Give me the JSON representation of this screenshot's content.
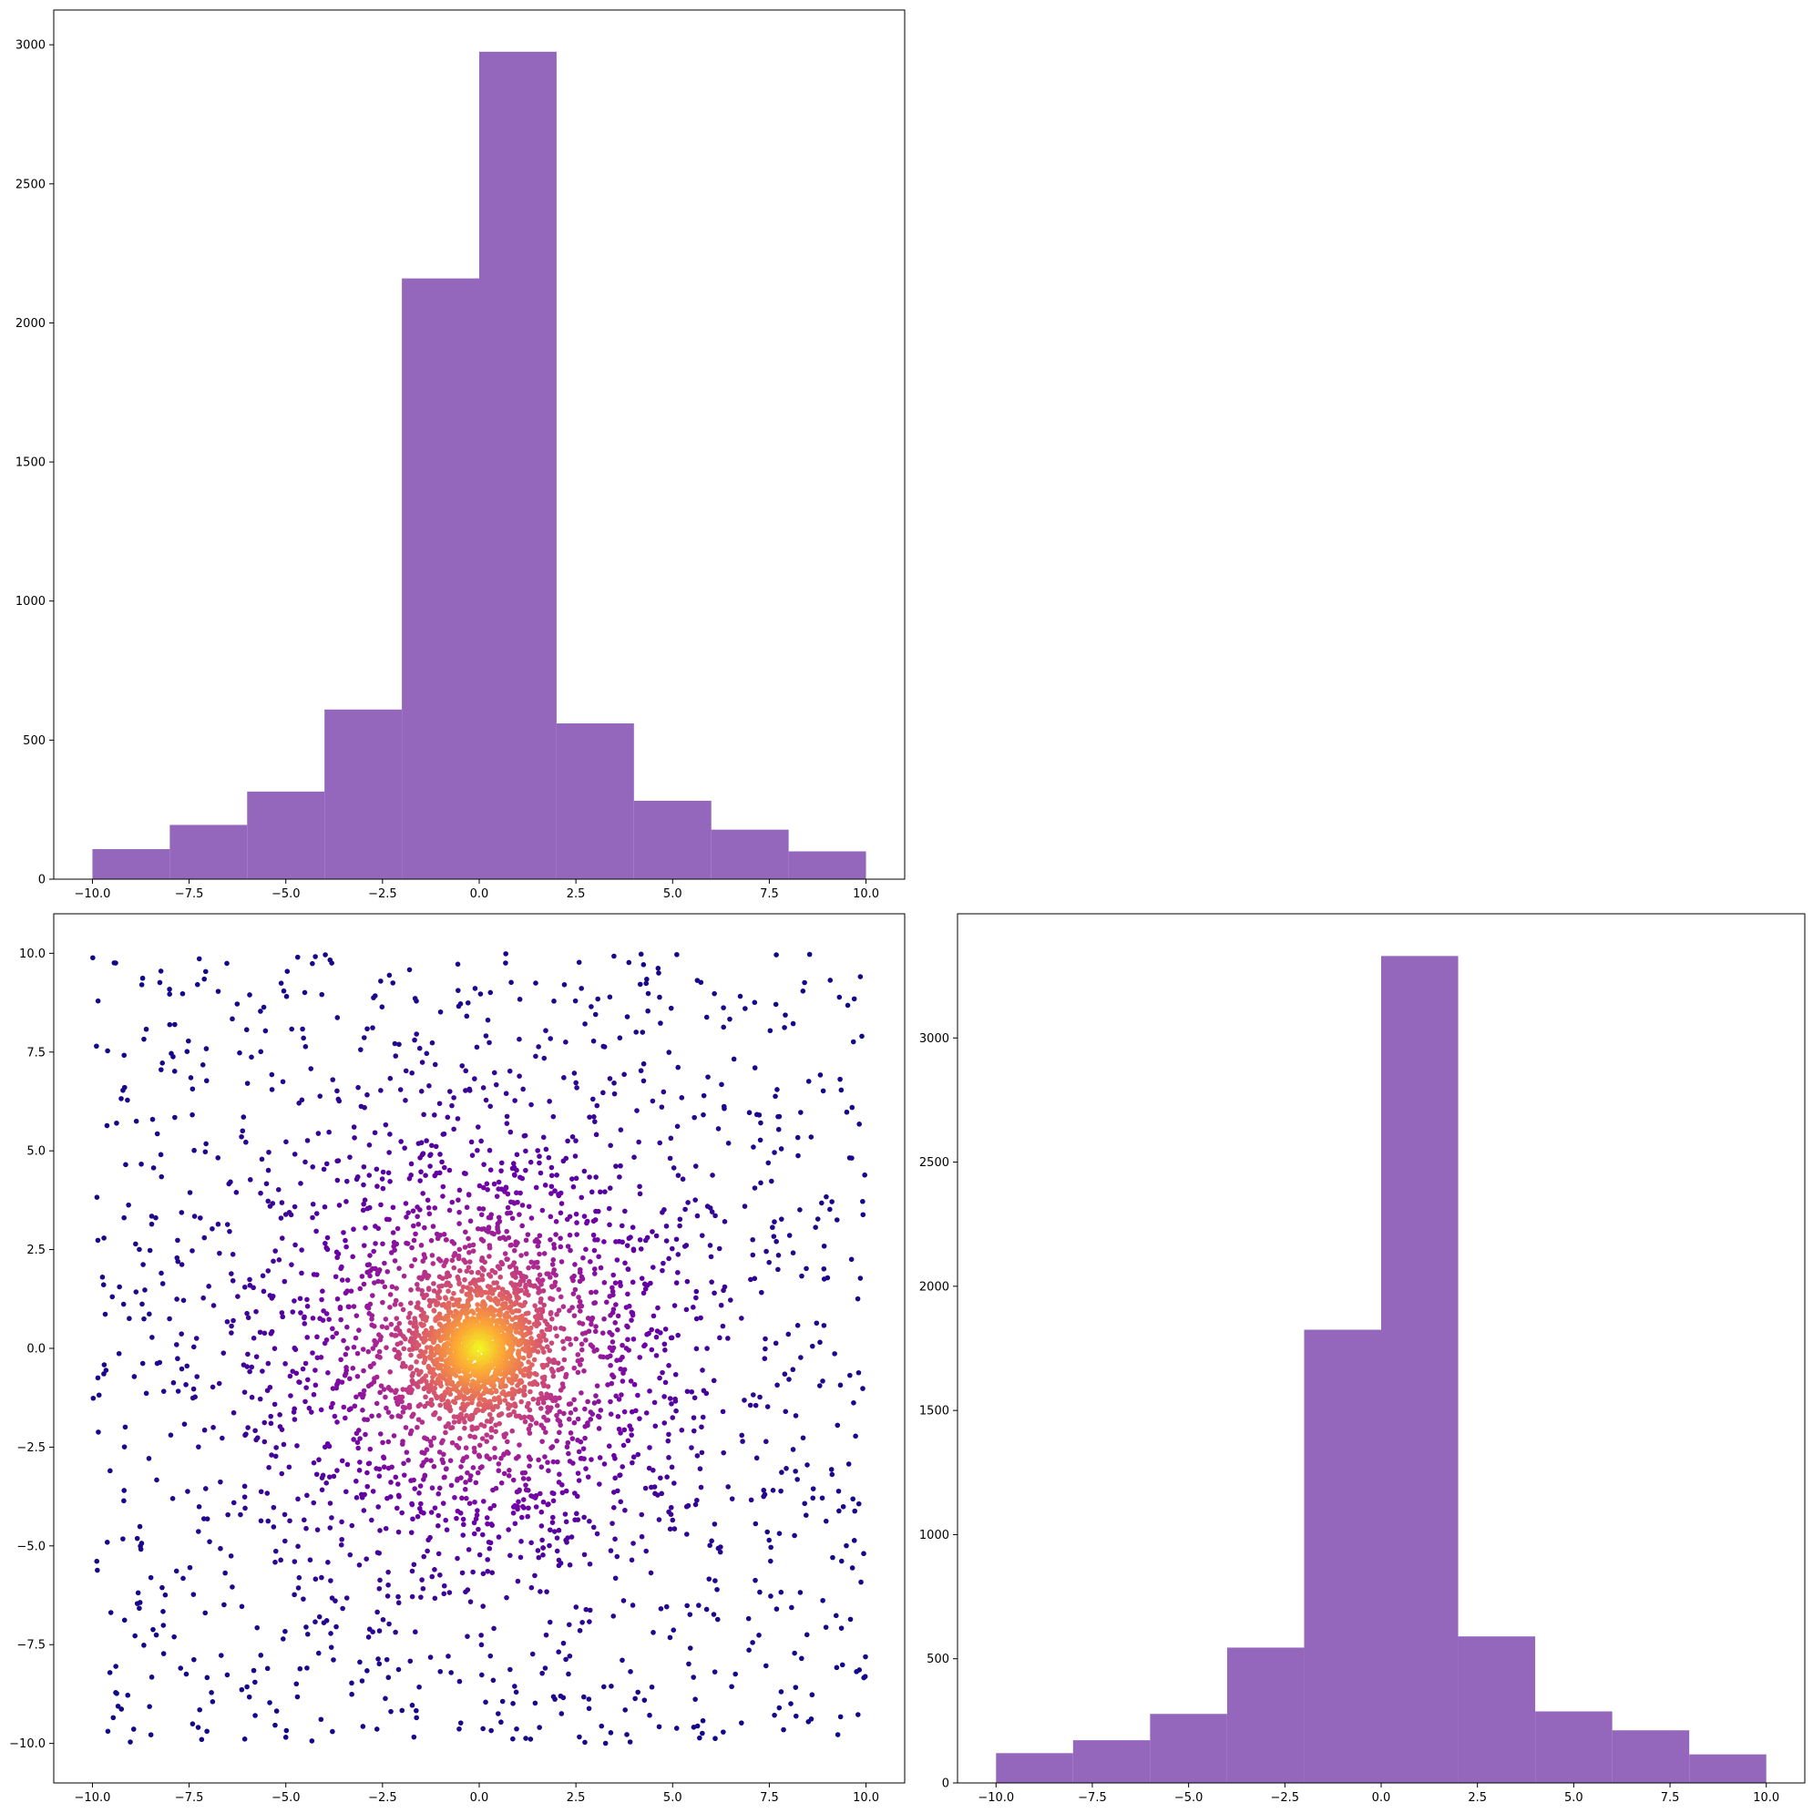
{
  "colors": {
    "bar_fill": "#9467bd",
    "scatter_colormap": [
      "#0d0887",
      "#6a00a8",
      "#b12a90",
      "#e16462",
      "#fca636",
      "#f0f921"
    ],
    "axes_edge": "#000000"
  },
  "chart_data": [
    {
      "id": "top-left-histogram",
      "type": "bar",
      "position": "top-left",
      "bin_edges": [
        -10,
        -8,
        -6,
        -4,
        -2,
        0,
        2,
        4,
        6,
        8,
        10
      ],
      "values": [
        108,
        195,
        315,
        610,
        2160,
        2975,
        560,
        282,
        178,
        100
      ],
      "xlim": [
        -11,
        11
      ],
      "ylim": [
        0,
        3125
      ],
      "xticks": [
        -10,
        -7.5,
        -5,
        -2.5,
        0,
        2.5,
        5,
        7.5,
        10
      ],
      "xtick_labels": [
        "−10.0",
        "−7.5",
        "−5.0",
        "−2.5",
        "0.0",
        "2.5",
        "5.0",
        "7.5",
        "10.0"
      ],
      "yticks": [
        0,
        500,
        1000,
        1500,
        2000,
        2500,
        3000
      ],
      "ytick_labels": [
        "0",
        "500",
        "1000",
        "1500",
        "2000",
        "2500",
        "3000"
      ],
      "grid": false
    },
    {
      "id": "bottom-left-scatter",
      "type": "scatter",
      "position": "bottom-left",
      "point_count": 4000,
      "color_encoding": "local point density (plasma colormap: dark purple sparse to yellow dense)",
      "distribution": "concentrated at (0, 0), spreading out to uniform sparse points across [-10, 10] in x and y",
      "xlim": [
        -11,
        11
      ],
      "ylim": [
        -11,
        11
      ],
      "xticks": [
        -10,
        -7.5,
        -5,
        -2.5,
        0,
        2.5,
        5,
        7.5,
        10
      ],
      "xtick_labels": [
        "−10.0",
        "−7.5",
        "−5.0",
        "−2.5",
        "0.0",
        "2.5",
        "5.0",
        "7.5",
        "10.0"
      ],
      "yticks": [
        -10,
        -7.5,
        -5,
        -2.5,
        0,
        2.5,
        5,
        7.5,
        10
      ],
      "ytick_labels": [
        "−10.0",
        "−7.5",
        "−5.0",
        "−2.5",
        "0.0",
        "2.5",
        "5.0",
        "7.5",
        "10.0"
      ],
      "grid": false
    },
    {
      "id": "bottom-right-histogram",
      "type": "bar",
      "position": "bottom-right",
      "bin_edges": [
        -10,
        -8,
        -6,
        -4,
        -2,
        0,
        2,
        4,
        6,
        8,
        10
      ],
      "values": [
        120,
        172,
        278,
        545,
        1825,
        3330,
        590,
        288,
        212,
        115
      ],
      "xlim": [
        -11,
        11
      ],
      "ylim": [
        0,
        3500
      ],
      "xticks": [
        -10,
        -7.5,
        -5,
        -2.5,
        0,
        2.5,
        5,
        7.5,
        10
      ],
      "xtick_labels": [
        "−10.0",
        "−7.5",
        "−5.0",
        "−2.5",
        "0.0",
        "2.5",
        "5.0",
        "7.5",
        "10.0"
      ],
      "yticks": [
        0,
        500,
        1000,
        1500,
        2000,
        2500,
        3000
      ],
      "ytick_labels": [
        "0",
        "500",
        "1000",
        "1500",
        "2000",
        "2500",
        "3000"
      ],
      "grid": false
    }
  ]
}
